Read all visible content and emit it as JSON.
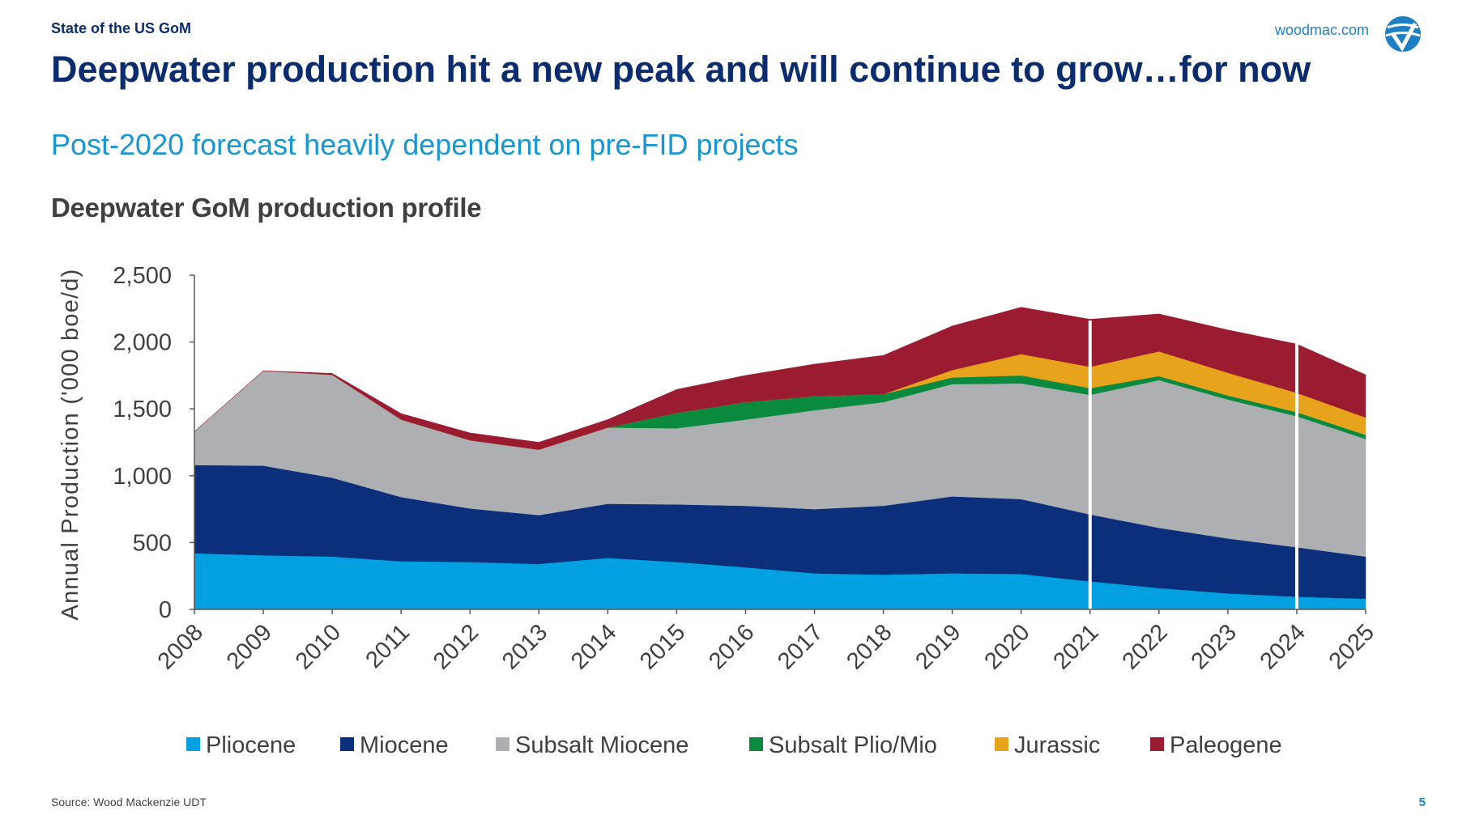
{
  "header": {
    "section": "State of the US GoM",
    "site": "woodmac.com",
    "title": "Deepwater production hit a new peak and will continue to grow…for now",
    "subtitle": "Post-2020 forecast heavily dependent on pre-FID projects"
  },
  "footer": {
    "source": "Source: Wood Mackenzie UDT",
    "page": "5"
  },
  "logo": {
    "icon": "woodmac-globe-icon"
  },
  "chart_data": {
    "type": "area",
    "stacked": true,
    "title": "Deepwater GoM production profile",
    "xlabel": "",
    "ylabel": "Annual Production ('000 boe/d)",
    "categories": [
      "2008",
      "2009",
      "2010",
      "2011",
      "2012",
      "2013",
      "2014",
      "2015",
      "2016",
      "2017",
      "2018",
      "2019",
      "2020",
      "2021",
      "2022",
      "2023",
      "2024",
      "2025"
    ],
    "ylim": [
      0,
      2500
    ],
    "yticks": [
      0,
      500,
      1000,
      1500,
      2000,
      2500
    ],
    "ytick_labels": [
      "0",
      "500",
      "1,000",
      "1,500",
      "2,000",
      "2,500"
    ],
    "grid": false,
    "legend": "bottom",
    "divider_years": [
      "2021",
      "2024"
    ],
    "series": [
      {
        "name": "Pliocene",
        "color": "#00a0e1",
        "values": [
          420,
          405,
          395,
          360,
          355,
          340,
          385,
          355,
          315,
          270,
          260,
          270,
          265,
          210,
          160,
          120,
          95,
          80
        ]
      },
      {
        "name": "Miocene",
        "color": "#0b2f7a",
        "values": [
          660,
          670,
          590,
          480,
          400,
          365,
          405,
          430,
          460,
          480,
          515,
          575,
          560,
          500,
          450,
          410,
          370,
          315
        ]
      },
      {
        "name": "Subsalt Miocene",
        "color": "#adafb2",
        "values": [
          250,
          710,
          770,
          580,
          510,
          490,
          570,
          570,
          645,
          740,
          775,
          840,
          865,
          895,
          1105,
          1040,
          980,
          880
        ]
      },
      {
        "name": "Subsalt Plio/Mio",
        "color": "#0a8a3e",
        "values": [
          0,
          0,
          0,
          0,
          0,
          0,
          0,
          115,
          130,
          105,
          60,
          50,
          60,
          50,
          30,
          30,
          30,
          30
        ]
      },
      {
        "name": "Jurassic",
        "color": "#e8a31c",
        "values": [
          0,
          0,
          0,
          0,
          0,
          0,
          0,
          0,
          0,
          0,
          0,
          55,
          160,
          160,
          185,
          170,
          145,
          130
        ]
      },
      {
        "name": "Paleogene",
        "color": "#9b1b30",
        "values": [
          0,
          0,
          10,
          45,
          55,
          55,
          60,
          175,
          200,
          240,
          290,
          330,
          350,
          355,
          280,
          320,
          365,
          320
        ]
      }
    ]
  }
}
